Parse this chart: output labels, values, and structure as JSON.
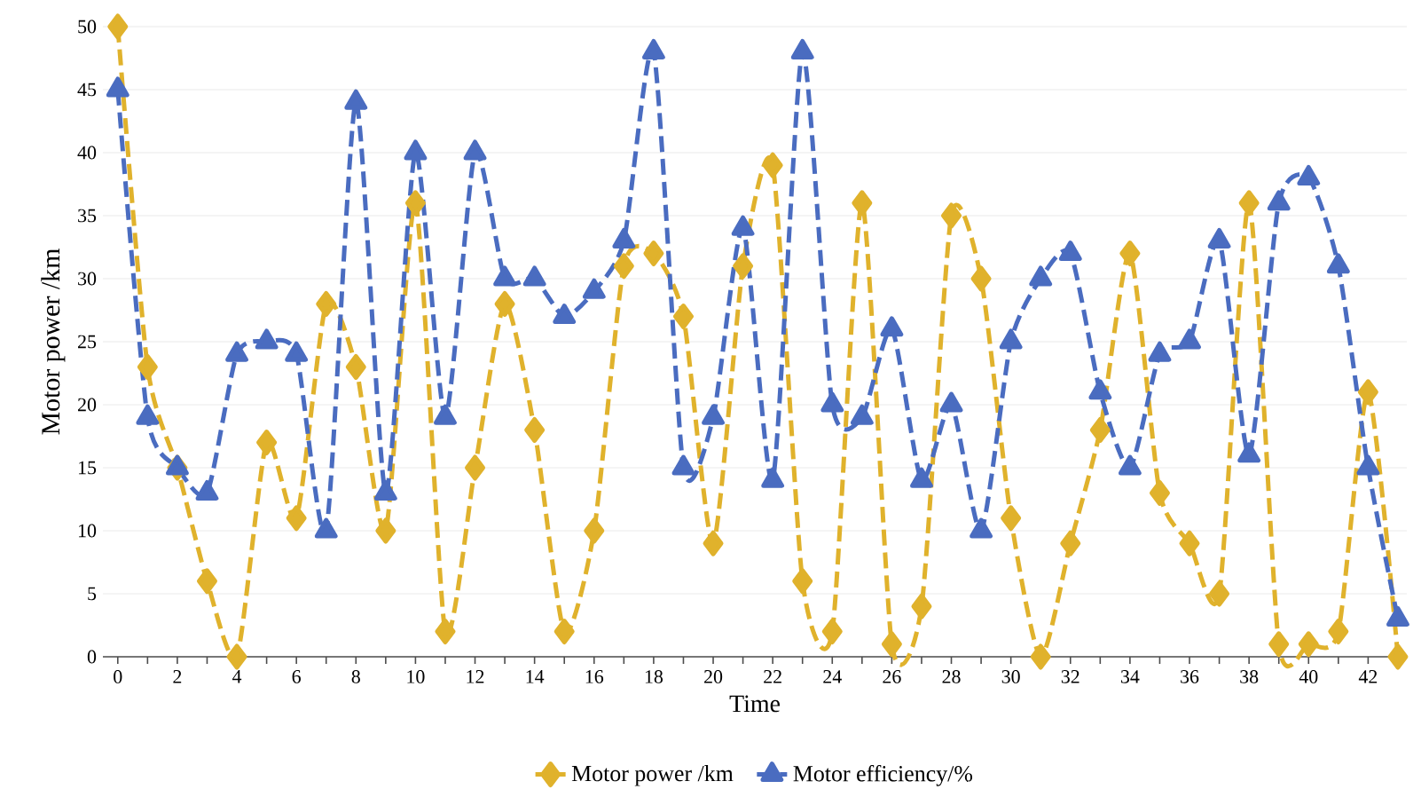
{
  "chart_data": {
    "type": "line",
    "xlabel": "Time",
    "ylabel": "Motor power /km",
    "x": [
      0,
      1,
      2,
      3,
      4,
      5,
      6,
      7,
      8,
      9,
      10,
      11,
      12,
      13,
      14,
      15,
      16,
      17,
      18,
      19,
      20,
      21,
      22,
      23,
      24,
      25,
      26,
      27,
      28,
      29,
      30,
      31,
      32,
      33,
      34,
      35,
      36,
      37,
      38,
      39,
      40,
      41,
      42,
      43
    ],
    "series": [
      {
        "name": "Motor power /km",
        "color": "#e0b22c",
        "marker": "diamond",
        "line_style": "dashed",
        "values": [
          50,
          23,
          15,
          6,
          0,
          17,
          11,
          28,
          23,
          10,
          36,
          2,
          15,
          28,
          18,
          2,
          10,
          31,
          32,
          27,
          9,
          31,
          39,
          6,
          2,
          36,
          1,
          4,
          35,
          30,
          11,
          0,
          9,
          18,
          32,
          13,
          9,
          5,
          36,
          1,
          1,
          2,
          21,
          0
        ]
      },
      {
        "name": "Motor efficiency/%",
        "color": "#4a6cc0",
        "marker": "triangle",
        "line_style": "dashed",
        "values": [
          45,
          19,
          15,
          13,
          24,
          25,
          24,
          10,
          44,
          13,
          40,
          19,
          40,
          30,
          30,
          27,
          29,
          33,
          48,
          15,
          19,
          34,
          14,
          48,
          20,
          19,
          26,
          14,
          20,
          10,
          25,
          30,
          32,
          21,
          15,
          24,
          25,
          33,
          16,
          36,
          38,
          31,
          15,
          3
        ]
      }
    ],
    "xlim": [
      -0.5,
      43.3
    ],
    "ylim": [
      0,
      50
    ],
    "xticks": [
      0,
      {
        "value": 1,
        "label": null
      },
      2,
      {
        "value": 3,
        "label": null
      },
      4,
      {
        "value": 5,
        "label": null
      },
      6,
      {
        "value": 7,
        "label": null
      },
      8,
      {
        "value": 9,
        "label": null
      },
      10,
      {
        "value": 11,
        "label": null
      },
      12,
      {
        "value": 13,
        "label": null
      },
      14,
      {
        "value": 15,
        "label": null
      },
      16,
      {
        "value": 17,
        "label": null
      },
      18,
      {
        "value": 19,
        "label": null
      },
      20,
      {
        "value": 21,
        "label": null
      },
      22,
      {
        "value": 23,
        "label": null
      },
      24,
      {
        "value": 25,
        "label": null
      },
      26,
      {
        "value": 27,
        "label": null
      },
      28,
      {
        "value": 29,
        "label": null
      },
      30,
      {
        "value": 31,
        "label": null
      },
      32,
      {
        "value": 33,
        "label": null
      },
      34,
      {
        "value": 35,
        "label": null
      },
      36,
      {
        "value": 37,
        "label": null
      },
      38,
      {
        "value": 39,
        "label": null
      },
      40,
      {
        "value": 41,
        "label": null
      },
      42,
      {
        "value": 43,
        "label": null
      }
    ],
    "yticks": [
      0,
      5,
      10,
      15,
      20,
      25,
      30,
      35,
      40,
      45,
      50
    ],
    "grid": "y",
    "legend": "bottom"
  }
}
